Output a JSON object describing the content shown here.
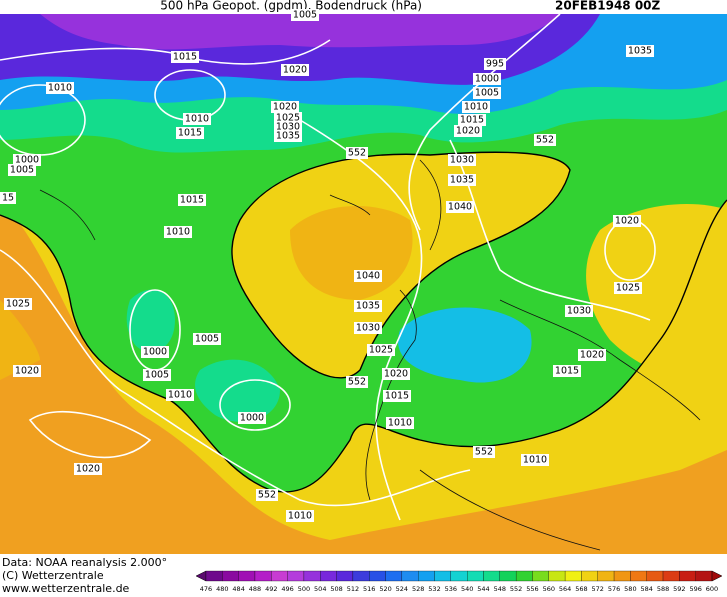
{
  "header": {
    "title": "500 hPa Geopot. (gpdm), Bodendruck (hPa)",
    "date": "20FEB1948 00Z"
  },
  "footer": {
    "source": "Data: NOAA reanalysis 2.000°",
    "copyright": "(C) Wetterzentrale",
    "url": "www.wetterzentrale.de"
  },
  "contour_labels": [
    "1005",
    "1015",
    "1020",
    "1010",
    "1010",
    "1015",
    "1020",
    "1025",
    "1030",
    "1035",
    "1000",
    "1005",
    "15",
    "1015",
    "1010",
    "1025",
    "1000",
    "1005",
    "1005",
    "1010",
    "1020",
    "1000",
    "1020",
    "552",
    "1010",
    "552",
    "552",
    "995",
    "1000",
    "1005",
    "1010",
    "1015",
    "1020",
    "1035",
    "1030",
    "1035",
    "1040",
    "1020",
    "1025",
    "1040",
    "1035",
    "1030",
    "1025",
    "1020",
    "552",
    "1015",
    "1010",
    "1030",
    "1020",
    "1015",
    "552",
    "1010"
  ],
  "colorbar": {
    "ticks": [
      476,
      480,
      484,
      488,
      492,
      496,
      500,
      504,
      508,
      512,
      516,
      520,
      524,
      528,
      532,
      536,
      540,
      544,
      548,
      552,
      556,
      560,
      564,
      568,
      572,
      576,
      580,
      584,
      588,
      592,
      596,
      600
    ],
    "colors": [
      "#5a0a6e",
      "#6e0a8c",
      "#8a0aa0",
      "#a010b4",
      "#b41ec8",
      "#c83cd2",
      "#b43cdc",
      "#9632dc",
      "#7828dc",
      "#5a28dc",
      "#3c3cdc",
      "#2850e6",
      "#1e6ef0",
      "#1e8cf0",
      "#14a0f0",
      "#14bee6",
      "#14d2d2",
      "#14dcb4",
      "#14dc8c",
      "#14d25a",
      "#32d232",
      "#78dc1e",
      "#c8e614",
      "#f0f014",
      "#f0d214",
      "#f0b414",
      "#f09614",
      "#f07814",
      "#e65a14",
      "#dc3c14",
      "#c81e14",
      "#b41414",
      "#a00a0a"
    ]
  }
}
